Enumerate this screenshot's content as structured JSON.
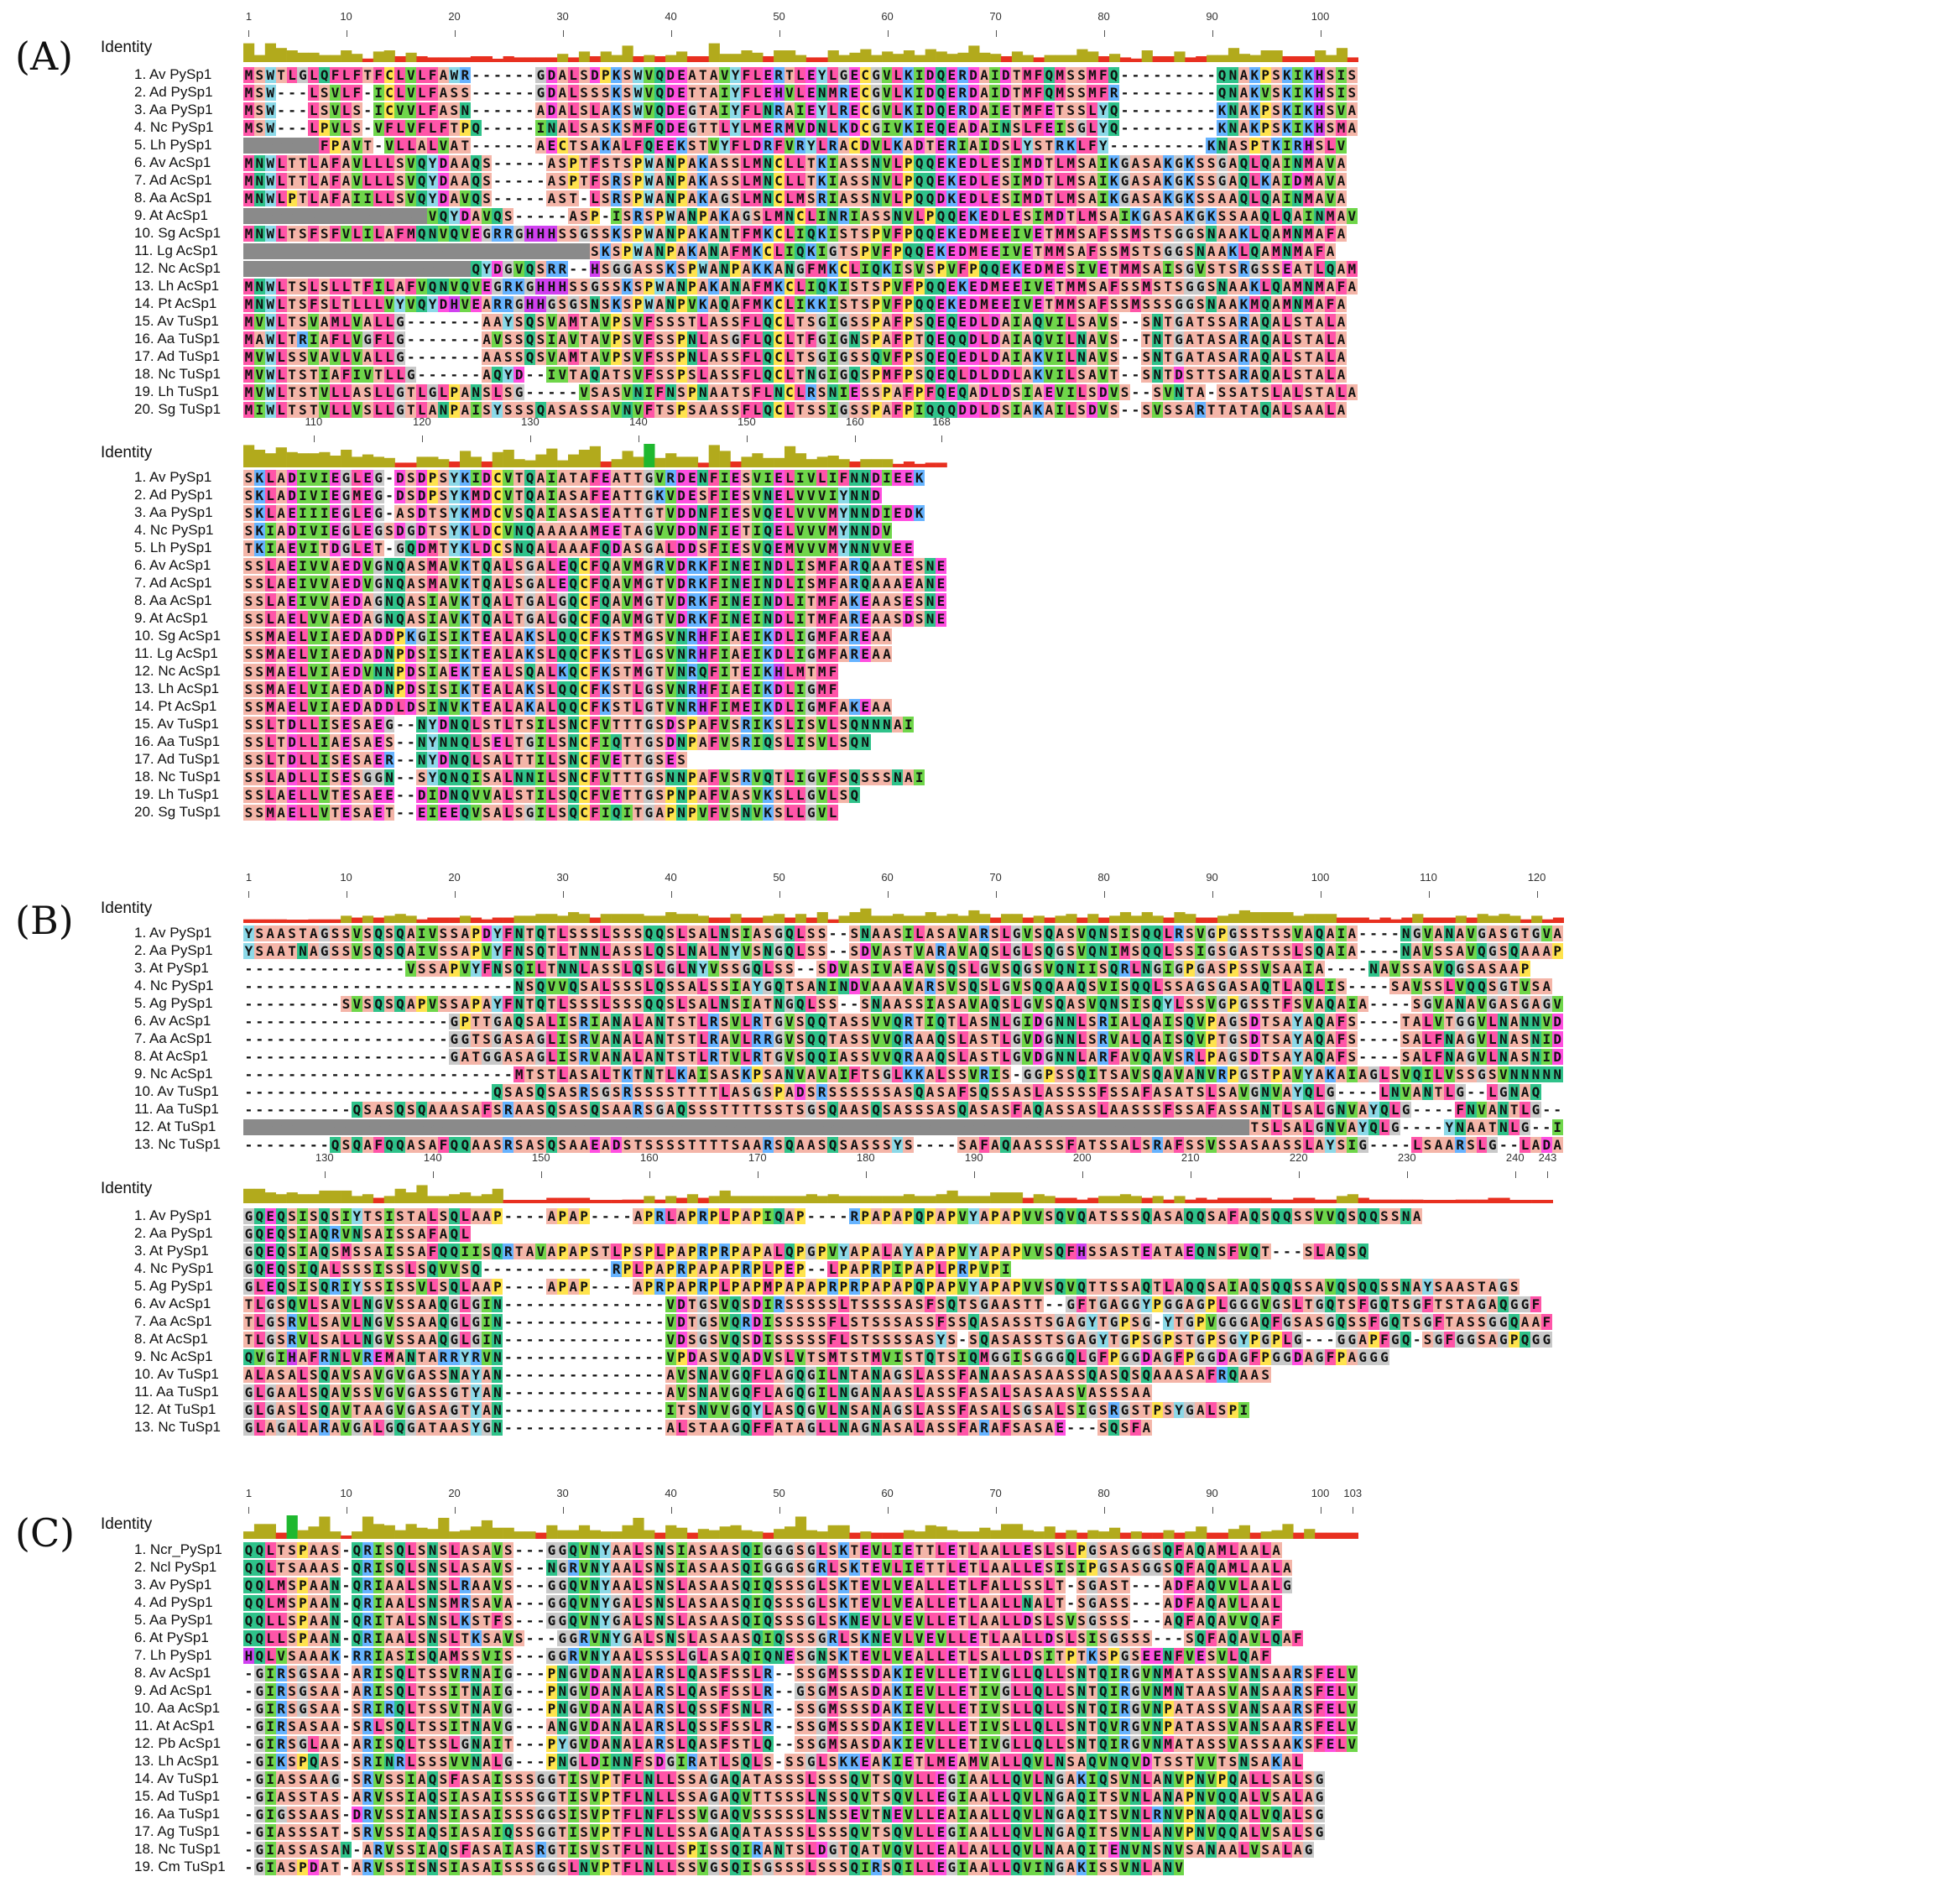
{
  "panels": [
    {
      "label": "(A)",
      "identity_label": "Identity",
      "blocks": [
        {
          "ruler": [
            1,
            10,
            20,
            30,
            40,
            50,
            60,
            70,
            80,
            90,
            100
          ],
          "start": 1,
          "cols": 103,
          "rows": [
            {
              "name": "1. Av PySp1",
              "seq": "MSWTLGLQFLFTFCLVLFAWR------GDALSDPKSWVQDEATAVYFLERTLEYLGECGVLKIDQERDAIDTMFQMSSMFQ---------QNAKPSKIKHSIS"
            },
            {
              "name": "2. Ad PySp1",
              "seq": "MSW---LSVLF-ICLVLFASS------GDALSSSKSWVQDETTAIYFLEHVLENMRECGVLKIDQERDAIDTMFQMSSMFR---------QNAKVSKIKHSIS"
            },
            {
              "name": "3. Aa PySp1",
              "seq": "MSW---LSVLS-ICVVLFASN------ADALSLAKSWVQDEGTAIYFLNRAIEYLRECGVLKIDQERDAIETMFETSSLYQ---------KNAKPSKIKHSVA"
            },
            {
              "name": "4. Nc PySp1",
              "seq": "MSW---LPVLS-VFLVFLFTPQ-----INALSASKSMFQDEGTTLYLMERMVDNLKDCGIVKIEQEADAINSLFEISGLYQ---------KNAKPSKIKHSMA"
            },
            {
              "name": "5. Lh PySp1",
              "seq": "???????FPAVT-VLLALVAT------AECTSAKALFQEEKSTVYFLDRFVRYLRACDVLKADTERIAIDSLYSTRKLFY---------KNASPTKIRHSLV"
            },
            {
              "name": "6. Av AcSp1",
              "seq": "MNWLTTLAFAVLLLSVQYDAAQS-----ASPTFSTSPWANPAKASSLMNCLLTKIASSNVLPQQEKEDLESIMDTLMSAIKGASAKGKSSGAQLQAINMAVA"
            },
            {
              "name": "7. Ad AcSp1",
              "seq": "MNWLTTLAFAVLLLSVQYDAAQS-----ASPTFSRSPWANPAKASSLMNCLLTKIASSNVLPQQEKEDLESIMDTLMSAIKGASAKGKSSGAQLKAIDMAVA"
            },
            {
              "name": "8. Aa AcSp1",
              "seq": "MNWLPTLAFAIILLSVQYDAVQS-----AST-LSRSPWANPAKAGSLMNCLMSRIASSNVLPQQDKEDLESIMDTLMSAIKGASAKGKSSAAQLQAINMAVA"
            },
            {
              "name": "9. At AcSp1",
              "seq": "?????????????????VQYDAVQS-----ASP-ISRSPWANPAKAGSLMNCLINRIASSNVLPQQEKEDLESIMDTLMSAIKGASAKGKSSAAQLQAINMAVA"
            },
            {
              "name": "10. Sg AcSp1",
              "seq": "MNWLTSFSFVLILAFMQNVQVEGRRGHHHSSGSSKSPWANPAKANTFMKCLIQKISTSPVFPQQEKEDMEEIVETMMSAFSSMSTSGGSNAAKLQAMNMAFA"
            },
            {
              "name": "11. Lg AcSp1",
              "seq": "????????????????????????????????SKSPWANPAKANAFMKCLIQKIGTSPVFPQQEKEDMEEIVETMMSAFSSMSTSGGSNAAKLQAMNMAFA"
            },
            {
              "name": "12. Nc AcSp1",
              "seq": "?????????????????????QYDGVQSRR--HSGGASSKSPWANPAKKANGFMKCLIQKISVSPVFPQQEKEDMESIVETMMSAISGVSTSRGSSEATLQAMNMAFA"
            },
            {
              "name": "13. Lh AcSp1",
              "seq": "MNWLTSLSLLTFILAFVQNVQVEGRKGHHHSSGSSKSPWANPAKANAFMKCLIQKISTSPVFPQQEKEDMEEIVETMMSAFSSMSTSGGSNAAKLQAMNMAFA"
            },
            {
              "name": "14. Pt AcSp1",
              "seq": "MNWLTSFSLTLLLVYVQYDHVEARRGHHGSGSNSKSPWANPVKAQAFMKCLIKKISTSPVFPQQEKEDMEEIVETMMSAFSSMSSSGGSNAAKMQAMNMAFA"
            },
            {
              "name": "15. Av TuSp1",
              "seq": "MVWLTSVAMLVALLG-------AAYSQSVAMTAVPSVFSSSTLASSFLQCLTSGIGSSPAFPSQEQEDLDAIAQVILSAVS--SNTGATSSARAQALSTALA"
            },
            {
              "name": "16. Aa TuSp1",
              "seq": "MAWLTRIAFLVGFLG-------AVSSQSIAVTAVPSVFSSPNLASGFLQCLTFGIGNSPAFPTQEQQDLDAIAQVILNAVS--TNTGATASARAQALSTALA"
            },
            {
              "name": "17. Ad TuSp1",
              "seq": "MVWLSSVAVLVALLG-------AASSQSVAMTAVPSVFSSPNLASSFLQCLTSGIGSSQVFPSQEQEDLDAIAKVILNAVS--SNTGATASARAQALSTALA"
            },
            {
              "name": "18. Nc TuSp1",
              "seq": "MVWLTSTIAFIVTLLG------AQYD--IVTAQATSVFSSPSLASSFLQCLTNGIGQSPMFPSQEQLDLDDLAKVILSAVT--SNTDSTTSARAQALSTALA"
            },
            {
              "name": "19. Lh TuSp1",
              "seq": "MVWLTSTVLLASLLGTLGLPANSLSG-----VSASVNIFNSPNAATSFLNCLRSNIESSPAFPFQEQADLDSIAEVILSDVS--SVNTA-SSATSLALSTALA"
            },
            {
              "name": "20. Sg TuSp1",
              "seq": "MIWLTSTVLLVSLLGTLANPAISYSSSQASASSAVNVFTSPSAASSFLQCLTSSIGSSPAFPIQQQDDLDSIAKAILSDVS--SVSSARTTATAQALSAALA"
            }
          ]
        },
        {
          "ruler": [
            110,
            120,
            130,
            140,
            150,
            160,
            168
          ],
          "start": 104,
          "cols": 65,
          "rows": [
            {
              "name": "1. Av PySp1",
              "seq": "SKLADIVIEGLEG-DSDPSYKIDCVTQAIATAFEATTGVRDENFIESVIELIVLIFNNDIEEK"
            },
            {
              "name": "2. Ad PySp1",
              "seq": "SKLADIVIEGMEG-DSDPSYKMDCVTQAIASAFEATTGKVDESFIESVNELVVVIYNND"
            },
            {
              "name": "3. Aa PySp1",
              "seq": "SKLAEIIIEGLEG-ASDTSYKMDCVSQAIASASEATTGTVDDNFIESVQELVVVMYNNDIEDK"
            },
            {
              "name": "4. Nc PySp1",
              "seq": "SKIADIVIEGLEGSDGDTSYKLDCVNQAAAAAMEETAGVVDDNFIETIQELVVVMYNNDV"
            },
            {
              "name": "5. Lh PySp1",
              "seq": "TKIAEVITDGLET-GQDMTYKLDCSNQALAAAFQDASGALDDSFIESVQEMVVVMYNNVVEE"
            },
            {
              "name": "6. Av AcSp1",
              "seq": "SSLAEIVVAEDVGNQASMAVKTQALSGALEQCFQAVMGRVDRKFINEINDLISMFARQAATESNEI"
            },
            {
              "name": "7. Ad AcSp1",
              "seq": "SSLAEIVVAEDVGNQASMAVKTQALSGALEQCFQAVMGTVDRKFINEINDLISMFARQAAAEANEV"
            },
            {
              "name": "8. Aa AcSp1",
              "seq": "SSLAEIVVAEDAGNQASIAVKTQALTGALGQCFQAVMGTVDRKFINEINDLITMFAKEAASESNEI"
            },
            {
              "name": "9. At AcSp1",
              "seq": "SSLAELVVAEDAGNQASIAVKTQALTGALGQCFQAVMGTVDRKFINEINDLITMFAREAASDSNEI"
            },
            {
              "name": "10. Sg AcSp1",
              "seq": "SSMAELVIAEDADDPKGISIKTEALAKSLQQCFKSTMGSVNRHFIAEIKDLIGMFAREAA"
            },
            {
              "name": "11. Lg AcSp1",
              "seq": "SSMAELVIAEDADNPDSISIKTEALAKSLQQCFKSTLGSVNRHFIAEIKDLIGMFAREAA"
            },
            {
              "name": "12. Nc AcSp1",
              "seq": "SSMAELVIAEDVNNPDSIAEKTEALSQALKQCFKSTMGTVNRQFITEIKHLMTMF"
            },
            {
              "name": "13. Lh AcSp1",
              "seq": "SSMAELVIAEDADNPDSISIKTEALAKSLQQCFKSTLGSVNRHFIAEIKDLIGMF"
            },
            {
              "name": "14. Pt AcSp1",
              "seq": "SSMAELVIAEDADDLDSINVKTEALAKALQQCFKSTLGTVNRHFIMEIKDLIGMFAKEAA"
            },
            {
              "name": "15. Av TuSp1",
              "seq": "SSLTDLLISESAEG--NYDNQLSTLTSILSNCFVTTTGSDSPAFVSRIKSLISVLSQNNNAI"
            },
            {
              "name": "16. Aa TuSp1",
              "seq": "SSLTDLLIAESAES--NYNNQLSELTGILSNCFIQTTGSDNPAFVSRIQSLISVLSQN"
            },
            {
              "name": "17. Ad TuSp1",
              "seq": "SSLTDLLISESAER--NYDNQLSALTTILSNCFVETTGSES"
            },
            {
              "name": "18. Nc TuSp1",
              "seq": "SSLADLLISESGGN--SYQNQISALNNILSNCFVTTTGSNNPAFVSRVQTLIGVFSQSSSNAI"
            },
            {
              "name": "19. Lh TuSp1",
              "seq": "SSLAELLVTESAEE--DIDNQVVALSTILSQCFVETTGSPNPAFVASVKSLLGVLSQ"
            },
            {
              "name": "20. Sg TuSp1",
              "seq": "SSMAELLVTESAET--EIEEQVSALSGILSQCFIQITGAPNPVFVSNVKSLLGVL"
            }
          ]
        }
      ]
    },
    {
      "label": "(B)",
      "identity_label": "Identity",
      "blocks": [
        {
          "ruler": [
            1,
            10,
            20,
            30,
            40,
            50,
            60,
            70,
            80,
            90,
            100,
            110,
            120
          ],
          "start": 1,
          "cols": 122,
          "rows": [
            {
              "name": "1. Av PySp1",
              "seq": "YSAASTAGSSVSQSQAIVSSAPDYFNTQTLSSSLSSSQQSLSALNSIASGQLSS--SNAASILASAVARSLGVSQASVQNSISQQLRSVGPGSSTSSVAQAIA----NGVANAVGASGTGVA"
            },
            {
              "name": "2. Aa PySp1",
              "seq": "YSAATNAGSSVSQSQAIVSSAPVYFNSQTLTNNLASSLQSLNALNYVSNGQLSS--SDVASTVARAVAQSLGLSQGSVQNIMSQQLSSIGSGASTSSLSQAIA----NAVSSAVQGSQAAAP"
            },
            {
              "name": "3. At PySp1",
              "seq": "---------------VSSAPVYFNSQILTNNLASSLQSLGLNYVSSGQLSS--SDVASIVAEAVSQSLGVSQGSVQNIISQRLNGIGPGASPSSVSAAIA----NAVSSAVQGSASAAP"
            },
            {
              "name": "4. Nc PySp1",
              "seq": "-------------------------NSQVVQSALSSSLQSSALSSIAYGQTSANINDVAAAVARSVSQSLGVSQQAAQSVISQQLSSAGSGASAQTLAQLIS----SAVSSLVQQSGTVSA"
            },
            {
              "name": "5. Ag PySp1",
              "seq": "---------SVSQSQAPVSSAPAYFNTQTLSSSLSSSQQSLSALNSIATNGQLSS--SNAASSIASAVAQSLGVSQASVQNSISQYLSSVGPGSSTFSVAQAIA----SGVANAVGASGAGVA"
            },
            {
              "name": "6. Av AcSp1",
              "seq": "-------------------GPTTGAQSALISRIANALANTSTLRSVLRTGVSQQTASSVVQRTIQTLASNLGIDGNNLSRIALQAISQVPAGSDTSAYAQAFS----TALVTGGVLNANNVD"
            },
            {
              "name": "7. Aa AcSp1",
              "seq": "-------------------GGTSGASAGLISRVANALANTSTLRAVLRRGVSQQTASSVVQRAAQSLASTLGVDGNNLSRVALQAISQVPTGSDTSAYAQAFS----SALFNAGVLNASNID"
            },
            {
              "name": "8. At AcSp1",
              "seq": "-------------------GATGGASAGLISRVANALANTSTLRTVLRTGVSQQIASSVVQRAAQSLASTLGVDGNNLARFAVQAVSRLPAGSDTSAYAQAFS----SALFNAGVLNASNID"
            },
            {
              "name": "9. Nc AcSp1",
              "seq": "-------------------------MTSTLASALTKTNTLKAISASKPSANVAVAIFTSGLKKALSSVRIS-GGPSSQITSAVSQAVANVRPGSTPAVYAKAIAGLSVQILVSSGSVNNNNNVK"
            },
            {
              "name": "10. Av TuSp1",
              "seq": "-----------------------QSASQSASRSGSRSSSSTTTTLASGSPADSRSSSSSSASQASAFSQSSASLASSSSFSSAFASATSLSAVGNVAYQLG----LNVANTLG--LGNAQ"
            },
            {
              "name": "11. Aa TuSp1",
              "seq": "----------QSASQSQAAASAFSRAASQSASQSAARSGAQSSSTTTTSSTSGSQAASQSASSSASQASASFAQASSASLAASSSFSSAFASSANTLSALGNVAYQLG----FNVANTLG--LGNAA"
            },
            {
              "name": "12. At TuSp1",
              "seq": "?????????????????????????????????????????????????????????????????????????????????????????????TSLSALGNVAYQLG----YNAATNLG--IANPA"
            },
            {
              "name": "13. Nc TuSp1",
              "seq": "--------QSQAFQQASAFQQAASRSASQSAAEADSTSSSSTTTTSAARSQAASQSASSSYS----SAFAQAASSSFATSSALSRAFSSVSSASAASSLAYSIG----LSAARSLG--LADAA"
            }
          ]
        },
        {
          "ruler": [
            130,
            140,
            150,
            160,
            170,
            180,
            190,
            200,
            210,
            220,
            230,
            240,
            243
          ],
          "start": 123,
          "cols": 121,
          "rows": [
            {
              "name": "1. Av PySp1",
              "seq": "GQEQSISQSIYTSISTALSQLAAP----APAP----APRLAPRPLPAPIQAP----RPAPAPQPAPVYAPAPVVSQVQATSSSQASAQQSAFAQSQQSSVVQSQQSSNA"
            },
            {
              "name": "2. Aa PySp1",
              "seq": "GQEQSIAQRVNSAISSAFAQL"
            },
            {
              "name": "3. At PySp1",
              "seq": "GQEQSIAQSMSSAISSAFQQIISQRTAVAPAPSTLPSPLPAPRPRPAPALQPGPVYAPALAYAPAPVYAPAPVVSQFHSSASTEATAEQNSFVQT---SLAQSQ"
            },
            {
              "name": "4. Nc PySp1",
              "seq": "GQEQSIQALSSSISSLSQVVSQ------------RPLPAPRPAPAPRPLPEP--LPAPRPIPAPLPRPVPI"
            },
            {
              "name": "5. Ag PySp1",
              "seq": "GLEQSISQRIYSSISSVLSQLAAP----APAP----APRPAPRPLPAPMPAPAPRPRPAPAPQPAPVYAPAPVVSQVQTTSSAQTLAQQSAIAQSQQSSAVQSQQSSNAYSAASTAGS"
            },
            {
              "name": "6. Av AcSp1",
              "seq": "TLGSQVLSAVLNGVSSAAQGLGIN---------------VDTGSVQSDIRSSSSSLTSSSSASFSQTSGAASTT--GFTGAGGYPGGAGPLGGGVGSLTGQTSFGQTSGFTSTAGAQGGF"
            },
            {
              "name": "7. Aa AcSp1",
              "seq": "TLGSRVLSAVLNGVSSAAQGLGIN---------------VDTGSVQRDISSSSSFLSTSSSASSFSSQASASSTSGAGYTGPSG-YTGPVGGGAQFGSASGQSSFGQTSGFTASSGGQAAF"
            },
            {
              "name": "8. At AcSp1",
              "seq": "TLGSRVLSALLNGVSSAAQGLGIN---------------VDSGSVQSDISSSSSFLSTSSSSASYS-SQASASSTSGAGYTGPSGPSTGPSGYPGPLG---GGAPFGQ-SGFGGSAGPQGGF"
            },
            {
              "name": "9. Nc AcSp1",
              "seq": "QVGIHAFRNLVREMANTARRYRVN---------------VPDASVQADVSLVTSMTSTMVISTQTSIQMGGISGGGQLGFPGGDAGFPGGDAGFPGGDAGFPAGGG"
            },
            {
              "name": "10. Av TuSp1",
              "seq": "ALASALSQAVSAVGVGASSNAYAN---------------AVSNAVGQFLAGQGILNTANAGSLASSFANAASASAASSQASQSQAAASAFRQAAS"
            },
            {
              "name": "11. Aa TuSp1",
              "seq": "GLGAALSQAVSSVGVGASSGTYAN---------------AVSNAVGQFLAGQGILNGANAASLASSFASALSASAASVASSSAA"
            },
            {
              "name": "12. At TuSp1",
              "seq": "GLGASLSQAVTAAGVGASAGTYAN---------------ITSNVVGQYLASQGVLNSANAGSLASSFASALSGSALSIGSRGSTPSYGALSPI"
            },
            {
              "name": "13. Nc TuSp1",
              "seq": "GLAGALARAVGALGQGATAASYGN---------------ALSTAAGQFFATAGLLNAGNASALASSFARAFSASAE---SQSFA"
            }
          ]
        }
      ]
    },
    {
      "label": "(C)",
      "identity_label": "Identity",
      "blocks": [
        {
          "ruler": [
            1,
            10,
            20,
            30,
            40,
            50,
            60,
            70,
            80,
            90,
            100,
            103
          ],
          "start": 1,
          "cols": 103,
          "rows": [
            {
              "name": "1. Ncr_PySp1",
              "seq": "QQLTSPAAS-QRISQLSNSLASAVS---GGQVNYAALSNSIASAASQIGGGSGLSKTEVLIETTLETLAALLESLSLPGSASGGSQFAQAMLAALA"
            },
            {
              "name": "2. Ncl PySp1",
              "seq": "QQLTSAAAS-QRISQLSNSLASAVS---NGRVNYAALSNSIASAASQIGGGSGRLSKTEVLIETTLETLAALLESISIPGSASGGSQFAQAMLAALA"
            },
            {
              "name": "3. Av PySp1",
              "seq": "QQLMSPAAN-QRIAALSNSLRAAVS---GGQVNYAALSNSLASAASQIQSSSGLSKTEVLVEALLETLFALLSSLT-SGAST---ADFAQVVLAALG"
            },
            {
              "name": "4. Ad PySp1",
              "seq": "QQLMSPAAN-QRIAALSNSMRSAVA---GGQVNYGALSNSLASAASQIQSSSGLSKTEVLVEALLETLAALLNALT-SGASS---ADFAQAVLAAL"
            },
            {
              "name": "5. Aa PySp1",
              "seq": "QQLLSPAAN-QRITALSNSLKSTFS---GGQVNYGALSNSLASAASQIQSSSGLSKNEVLVEVLLETLAALLDSLSVSGSSS---AQFAQAVVQAF"
            },
            {
              "name": "6. At PySp1",
              "seq": "QQLLSPAAN-QRIAALSNSLTKSAVS---GGRVNYGALSNSLASAASQIQSSSGRLSKNEVLVEVLLETLAALLDSLSISGSSS---SQFAQAVLQAF"
            },
            {
              "name": "7. Lh PySp1",
              "seq": "HQLVSAAAK-RRIASISQAMSSVIS---GGRVNYAALSSSLGLASAQIQNESGNSKTEVLVEALLETLSALLDSITPTKSPGSEENFVESVLQAF"
            },
            {
              "name": "8. Av AcSp1",
              "seq": "-GIRSGSAA-ARISQLTSSVRNAIG---PNGVDANALARSLQASFSSLR--SSGMSSSDAKIEVLLETIVGLLQLLSNTQIRGVNMATASSVANSAARSFELVLA"
            },
            {
              "name": "9. Ad AcSp1",
              "seq": "-GIRSGSAA-ARISQLTSSITNAIG---PNGVDANALARSLQASFSSLR--GSGMSASDAKIEVLLETIVGLLQLLSNTQIRGVNMNTAASVANSAARSFELVLA"
            },
            {
              "name": "10. Aa AcSp1",
              "seq": "-GIRSGSAA-SRIRQLTSSVTNAVG---PNGVDANALARSLQSSFSNLR--SSGMSSSDAKIEVLLETIVSLLQLLSNTQIRGVNPATASSVANSAARSFELVLA"
            },
            {
              "name": "11. At AcSp1",
              "seq": "-GIRSASAA-SRLSQLTSSITNAVG---ANGVDANALARSLQSSFSSLR--SSGMSSSDAKIEVLLETIVSLLQLLSNTQVRGVNPATASSVANSAARSFELVLA"
            },
            {
              "name": "12. Pb AcSp1",
              "seq": "-GIRSGLAA-ARISQLTSSLGNAIT---PYGVDANALARSLQASFSTLQ--SSGMSASDAKIEVLLETIVGLLQLLSNTQIRGVNMATASSVASSAAKSFELVL"
            },
            {
              "name": "13. Lh AcSp1",
              "seq": "-GIKSPQAS-SRINRLSSSVVNALG---PNGLDINNFSDGIRATLSQLS-SSGLSKKEAKIETLMEAMVALLQVLNSAQVNQVDTSSTVVTSNSAKAL"
            },
            {
              "name": "14. Av TuSp1",
              "seq": "-GIASSAAG-SRVSSIAQSFASAISSSGGTISVPTFLNLLSSAGAQATASSSLSSSQVTSQVLLEGIAALLQVLNGAKIQSVNLANVPNVPQALLSALSG"
            },
            {
              "name": "15. Ad TuSp1",
              "seq": "-GIASSTAS-ARVSSIAQSIASAISSSGGTISVPTFLNLLSSAGAQVTTSSSLNSSQVTSQVLLEGIAALLQVLNGAQITSVNLANAPNVQQALVSALAG"
            },
            {
              "name": "16. Aa TuSp1",
              "seq": "-GIGSSAAS-DRVSSIANSIASAISSSGGSISVPTFLNFLSSVGAQVSSSSSLNSSEVTNEVLLEAIAALLQVLNGAQITSVNLRNVPNAQQALVQALSG"
            },
            {
              "name": "17. Ag TuSp1",
              "seq": "-GIASSSAT-SRVSSIAQSIASAIQSSGGTISVPTFLNLLSSAGAQATASSSLSSSQVTSQVLLEGIAALLQVLNGAQITSVNLANVPNVQQALVSALSG"
            },
            {
              "name": "18. Nc TuSp1",
              "seq": "-GIASSASAN-ARVSSIAQSFASAIASRGTISVSTFLNLLSPISSQIRANTSLDGTQATVQVLLEALAALLQVLNAAQITENVNSNVSANAALVSALAG"
            },
            {
              "name": "19. Cm TuSp1",
              "seq": "-GIASPDAT-ARVSSISNSIASAISSSGGSLNVPTFLNLLSSVGSQISGSSSLSSSQIRSQILLEGIAALLQVINGAKISSVNLANV"
            }
          ]
        }
      ]
    }
  ],
  "residue_colors": {
    "A": "#f4b5a8",
    "S": "#f4b5a8",
    "T": "#f4b5a8",
    "G": "#c9c9c9",
    "P": "#ffe34d",
    "V": "#6fd64a",
    "I": "#6fd64a",
    "L": "#ff55a8",
    "M": "#ff55a8",
    "F": "#ff55a8",
    "Y": "#8cd9e8",
    "W": "#8cd9e8",
    "C": "#ffe34d",
    "N": "#2fc28a",
    "Q": "#2fc28a",
    "D": "#ff4fe0",
    "E": "#ff4fe0",
    "K": "#66b3ff",
    "R": "#66b3ff",
    "H": "#d040f0"
  },
  "identity_colors": {
    "high": "#1fb82f",
    "mid": "#b2aa1c",
    "low": "#e83020"
  }
}
